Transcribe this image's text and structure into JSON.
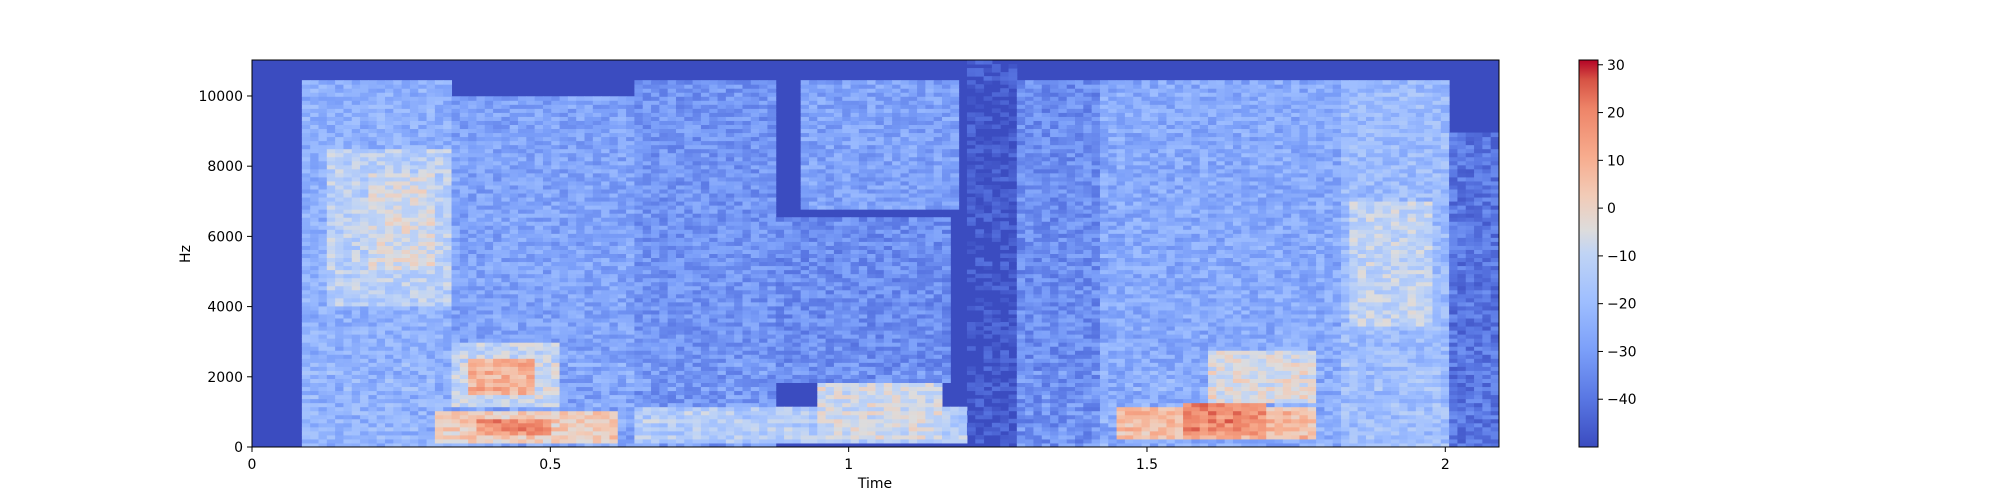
{
  "chart_data": {
    "type": "heatmap",
    "subtype": "spectrogram",
    "title": "",
    "xlabel": "Time",
    "ylabel": "Hz",
    "xlim": [
      0,
      2.09
    ],
    "ylim": [
      0,
      11025
    ],
    "xticks": [
      0,
      0.5,
      1,
      1.5,
      2
    ],
    "xtick_labels": [
      "0",
      "0.5",
      "1",
      "1.5",
      "2"
    ],
    "yticks": [
      0,
      2000,
      4000,
      6000,
      8000,
      10000
    ],
    "ytick_labels": [
      "0",
      "2000",
      "4000",
      "6000",
      "8000",
      "10000"
    ],
    "colormap": "coolwarm",
    "colorbar": {
      "range": [
        -50,
        31
      ],
      "ticks": [
        -40,
        -30,
        -20,
        -10,
        0,
        10,
        20,
        30
      ],
      "tick_labels": [
        "−40",
        "−30",
        "−20",
        "−10",
        "0",
        "10",
        "20",
        "30"
      ]
    },
    "silence_level_db": -50,
    "energy_regions": [
      {
        "t0": 0.08,
        "t1": 0.33,
        "f0": 0,
        "f1": 10500,
        "db": -24
      },
      {
        "t0": 0.12,
        "t1": 0.33,
        "f0": 4000,
        "f1": 8500,
        "db": -12
      },
      {
        "t0": 0.2,
        "t1": 0.31,
        "f0": 5000,
        "f1": 7800,
        "db": -5
      },
      {
        "t0": 0.33,
        "t1": 0.64,
        "f0": 0,
        "f1": 10000,
        "db": -28
      },
      {
        "t0": 0.33,
        "t1": 0.52,
        "f0": 1200,
        "f1": 3000,
        "db": -10
      },
      {
        "t0": 0.36,
        "t1": 0.47,
        "f0": 1500,
        "f1": 2500,
        "db": 8
      },
      {
        "t0": 0.3,
        "t1": 0.62,
        "f0": 100,
        "f1": 1000,
        "db": 0
      },
      {
        "t0": 0.38,
        "t1": 0.5,
        "f0": 300,
        "f1": 800,
        "db": 15
      },
      {
        "t0": 0.64,
        "t1": 0.88,
        "f0": 0,
        "f1": 10500,
        "db": -32
      },
      {
        "t0": 0.64,
        "t1": 1.2,
        "f0": 100,
        "f1": 1200,
        "db": -15
      },
      {
        "t0": 0.95,
        "t1": 1.15,
        "f0": 200,
        "f1": 1800,
        "db": -8
      },
      {
        "t0": 0.92,
        "t1": 1.18,
        "f0": 6800,
        "f1": 10500,
        "db": -28
      },
      {
        "t0": 0.88,
        "t1": 1.17,
        "f0": 1800,
        "f1": 6500,
        "db": -34
      },
      {
        "t0": 1.2,
        "t1": 1.28,
        "f0": 0,
        "f1": 11025,
        "db": -48
      },
      {
        "t0": 1.28,
        "t1": 1.42,
        "f0": 0,
        "f1": 10500,
        "db": -34
      },
      {
        "t0": 1.42,
        "t1": 1.82,
        "f0": 0,
        "f1": 10500,
        "db": -26
      },
      {
        "t0": 1.45,
        "t1": 1.78,
        "f0": 200,
        "f1": 1200,
        "db": 5
      },
      {
        "t0": 1.56,
        "t1": 1.7,
        "f0": 400,
        "f1": 1300,
        "db": 17
      },
      {
        "t0": 1.6,
        "t1": 1.78,
        "f0": 1300,
        "f1": 2800,
        "db": -6
      },
      {
        "t0": 1.82,
        "t1": 2.0,
        "f0": 0,
        "f1": 10500,
        "db": -20
      },
      {
        "t0": 1.84,
        "t1": 1.98,
        "f0": 3500,
        "f1": 7000,
        "db": -10
      },
      {
        "t0": 2.0,
        "t1": 2.09,
        "f0": 0,
        "f1": 9000,
        "db": -40
      }
    ]
  }
}
